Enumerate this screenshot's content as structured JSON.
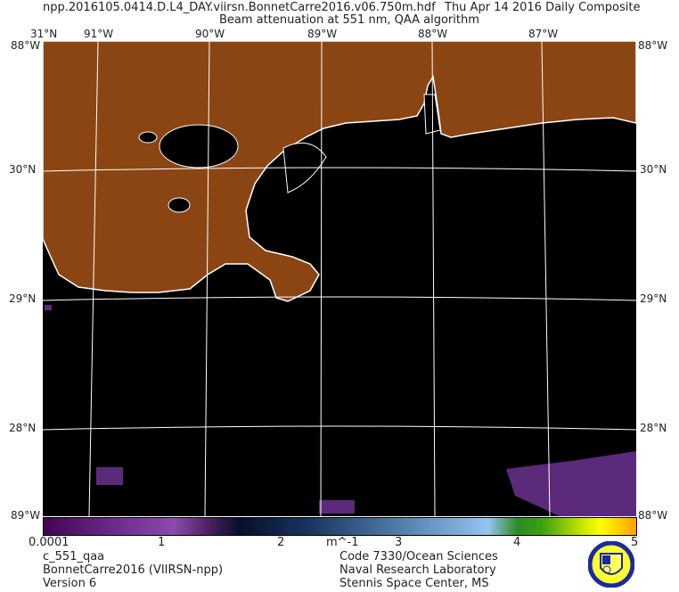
{
  "header": {
    "filename": "npp.2016105.0414.D.L4_DAY.viirsn.BonnetCarre2016.v06.750m.hdf",
    "date": "Thu Apr 14 2016 Daily Composite",
    "subtitle": "Beam attenuation at 551 nm, QAA algorithm"
  },
  "map": {
    "lon_labels": [
      "91°W",
      "90°W",
      "89°W",
      "88°W",
      "87°W"
    ],
    "lat_labels": [
      "31°N",
      "30°N",
      "29°N",
      "28°N"
    ],
    "corner_lon_label": "88°W",
    "corner_lon_label_bottom": "89°W",
    "land_color": "#8B4513",
    "water_color": "#000000"
  },
  "colorbar": {
    "ticks": [
      "0.0001",
      "1",
      "2",
      "3",
      "4",
      "5"
    ],
    "unit": "m^-1",
    "min": 0.0001,
    "max": 5
  },
  "footer": {
    "left": [
      "c_551_qaa",
      "BonnetCarre2016 (VIIRSN-npp)",
      "Version 6"
    ],
    "right": [
      "Code 7330/Ocean Sciences",
      "Naval Research Laboratory",
      "Stennis Space Center, MS"
    ]
  },
  "logo": "Naval Research Laboratory seal"
}
